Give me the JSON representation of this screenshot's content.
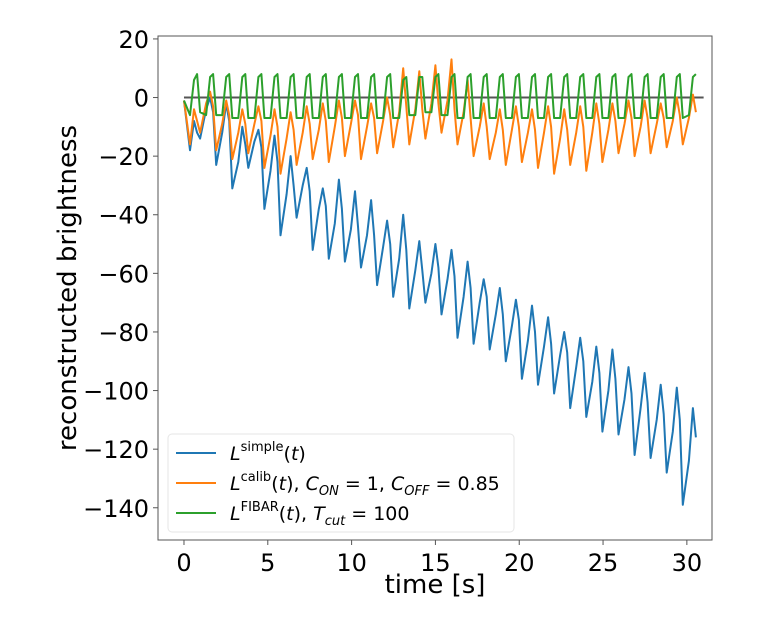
{
  "chart_data": {
    "type": "line",
    "title": "",
    "xlabel": "time [s]",
    "ylabel": "reconstructed brightness",
    "xlim": [
      -1.55,
      31.5
    ],
    "ylim": [
      -151,
      21
    ],
    "xticks": [
      0,
      5,
      10,
      15,
      20,
      25,
      30
    ],
    "xtick_labels": [
      "0",
      "5",
      "10",
      "15",
      "20",
      "25",
      "30"
    ],
    "yticks": [
      20,
      0,
      -20,
      -40,
      -60,
      -80,
      -100,
      -120,
      -140
    ],
    "ytick_labels": [
      "20",
      "0",
      "−20",
      "−40",
      "−60",
      "−80",
      "−100",
      "−120",
      "−140"
    ],
    "grid": false,
    "zero_line": {
      "y": 0,
      "color": "#555555"
    },
    "legend": {
      "placement": "lower-left",
      "entries": [
        {
          "series": "simple",
          "base": "L",
          "sup": "simple",
          "rest": "(t)"
        },
        {
          "series": "calib",
          "base": "L",
          "sup": "calib",
          "rest": "(t), ",
          "params": [
            {
              "sym": "C",
              "sub": "ON",
              "text": " = 1, "
            },
            {
              "sym": "C",
              "sub": "OFF",
              "text": " = 0.85"
            }
          ]
        },
        {
          "series": "fibar",
          "base": "L",
          "sup": "FIBAR",
          "rest": "(t), ",
          "params": [
            {
              "sym": "T",
              "sub": "cut",
              "text": " = 100"
            }
          ]
        }
      ]
    },
    "period_s": 0.96,
    "cycle_phase_offsets_s": [
      0,
      0.36,
      0.6,
      0.78
    ],
    "cycles": 32,
    "series": [
      {
        "name": "L^simple(t)",
        "key": "simple",
        "color": "#1f77b4",
        "values": [
          -1,
          -18,
          -8,
          -12,
          -14,
          -4,
          0,
          -5,
          -23,
          -12,
          -2,
          -8,
          -31,
          -22,
          -10,
          -16,
          -24,
          -15,
          -11,
          -17,
          -38,
          -25,
          -13,
          -22,
          -47,
          -33,
          -20,
          -30,
          -41,
          -30,
          -24,
          -32,
          -52,
          -38,
          -31,
          -37,
          -55,
          -43,
          -28,
          -38,
          -56,
          -45,
          -32,
          -44,
          -58,
          -47,
          -35,
          -47,
          -64,
          -51,
          -42,
          -50,
          -68,
          -55,
          -40,
          -52,
          -72,
          -59,
          -49,
          -59,
          -70,
          -60,
          -50,
          -58,
          -74,
          -62,
          -52,
          -61,
          -82,
          -68,
          -56,
          -65,
          -84,
          -70,
          -62,
          -68,
          -86,
          -74,
          -65,
          -74,
          -90,
          -78,
          -69,
          -76,
          -96,
          -83,
          -71,
          -80,
          -98,
          -85,
          -75,
          -84,
          -101,
          -88,
          -80,
          -87,
          -106,
          -92,
          -82,
          -90,
          -109,
          -97,
          -85,
          -94,
          -114,
          -100,
          -86,
          -96,
          -115,
          -103,
          -92,
          -101,
          -122,
          -106,
          -94,
          -104,
          -123,
          -110,
          -98,
          -108,
          -128,
          -114,
          -99,
          -110,
          -139,
          -124,
          -106,
          -116
        ]
      },
      {
        "name": "L^calib(t), C_ON = 1, C_OFF = 0.85",
        "key": "calib",
        "color": "#ff7f0e",
        "values": [
          -1,
          -16,
          -4,
          -8,
          -12,
          -2,
          2,
          -3,
          -18,
          -9,
          -1,
          -6,
          -21,
          -12,
          -4,
          -9,
          -19,
          -9,
          -3,
          -8,
          -24,
          -13,
          -4,
          -10,
          -26,
          -14,
          -5,
          -11,
          -23,
          -12,
          -3,
          -9,
          -21,
          -11,
          -2,
          -8,
          -22,
          -10,
          -1,
          -7,
          -20,
          -9,
          -1,
          -6,
          -21,
          -10,
          -2,
          -7,
          -19,
          -8,
          0,
          -6,
          -17,
          -5,
          10,
          -3,
          -16,
          -4,
          9,
          -4,
          -14,
          -2,
          11,
          -2,
          -12,
          -1,
          13,
          -4,
          -16,
          -5,
          6,
          -7,
          -20,
          -10,
          -2,
          -10,
          -21,
          -12,
          -4,
          -11,
          -23,
          -11,
          -3,
          -10,
          -22,
          -12,
          -4,
          -11,
          -24,
          -12,
          -3,
          -10,
          -26,
          -14,
          -4,
          -11,
          -23,
          -12,
          -3,
          -10,
          -25,
          -12,
          -2,
          -9,
          -22,
          -11,
          -2,
          -8,
          -19,
          -9,
          -1,
          -7,
          -20,
          -10,
          -1,
          -7,
          -19,
          -9,
          -2,
          -7,
          -17,
          -8,
          0,
          -6,
          -16,
          -7,
          1,
          -5
        ]
      },
      {
        "name": "L^FIBAR(t), T_cut = 100",
        "key": "fibar",
        "color": "#2ca02c",
        "values": [
          -1,
          -6,
          6,
          8,
          -5,
          -6,
          7,
          8,
          -6,
          -6,
          7,
          8,
          -7,
          -7,
          7,
          8,
          -7,
          -7,
          7,
          8,
          -7,
          -7,
          7,
          8,
          -7,
          -7,
          7,
          8,
          -7,
          -7,
          7,
          8,
          -7,
          -7,
          7,
          8,
          -7,
          -7,
          7,
          8,
          -7,
          -7,
          7,
          8,
          -7,
          -7,
          7,
          8,
          -7,
          -7,
          7,
          8,
          -7,
          -7,
          6,
          7,
          -6,
          -6,
          7,
          7,
          -5,
          -5,
          7,
          8,
          -6,
          -6,
          7,
          8,
          -7,
          -7,
          7,
          8,
          -7,
          -7,
          7,
          8,
          -7,
          -7,
          7,
          8,
          -7,
          -7,
          7,
          8,
          -7,
          -7,
          7,
          8,
          -7,
          -7,
          7,
          8,
          -7,
          -7,
          7,
          8,
          -7,
          -7,
          7,
          8,
          -7,
          -7,
          7,
          8,
          -7,
          -7,
          7,
          8,
          -7,
          -7,
          7,
          8,
          -7,
          -7,
          7,
          8,
          -7,
          -7,
          7,
          8,
          -7,
          -7,
          7,
          8,
          -7,
          -6,
          7,
          8
        ]
      }
    ]
  }
}
